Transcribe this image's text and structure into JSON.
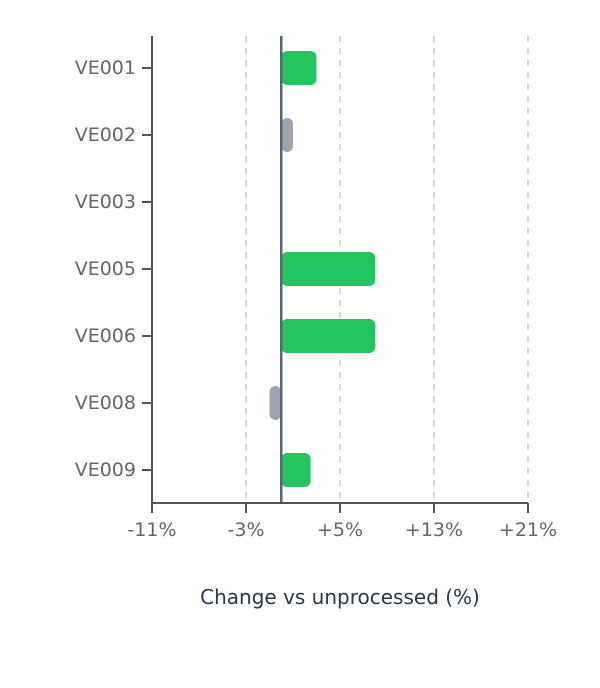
{
  "chart_data": {
    "type": "bar",
    "orientation": "horizontal",
    "categories": [
      "VE001",
      "VE002",
      "VE003",
      "VE005",
      "VE006",
      "VE008",
      "VE009"
    ],
    "values": [
      3,
      1,
      0,
      8,
      8,
      -1,
      2.5
    ],
    "bar_colors": [
      "#22c55e",
      "#a0a4ae",
      "#a0a4ae",
      "#22c55e",
      "#22c55e",
      "#a0a4ae",
      "#22c55e"
    ],
    "xlabel": "Change vs unprocessed (%)",
    "ylabel": "",
    "title": "",
    "xlim": [
      -11,
      21
    ],
    "xticks": [
      -11,
      -3,
      5,
      13,
      21
    ],
    "xtick_labels": [
      "-11%",
      "-3%",
      "+5%",
      "+13%",
      "+21%"
    ],
    "reference_line": 0,
    "grid": "vertical dashed",
    "legend": "none"
  }
}
